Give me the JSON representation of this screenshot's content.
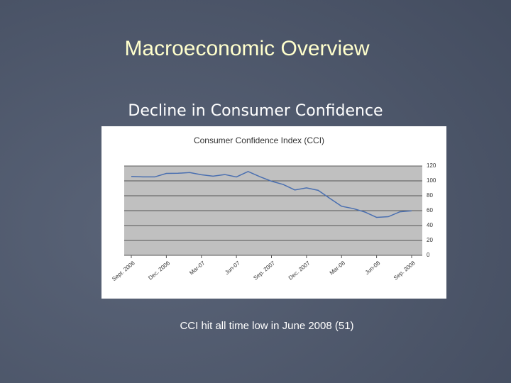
{
  "slide": {
    "title": "Macroeconomic Overview",
    "subtitle": "Decline in Consumer Confidence",
    "caption": "CCI hit all time low in June 2008 (51)"
  },
  "chart_data": {
    "type": "line",
    "title": "Consumer Confidence Index (CCI)",
    "categories": [
      "Sept. 2006",
      null,
      null,
      "Dec. 2006",
      null,
      null,
      "Mar-07",
      null,
      null,
      "Jun-07",
      null,
      null,
      "Sep. 2007",
      null,
      null,
      "Dec. 2007",
      null,
      null,
      "Mar-08",
      null,
      null,
      "Jun-08",
      null,
      null,
      "Sep. 2008"
    ],
    "series": [
      {
        "name": "CCI",
        "color": "#4a6fb0",
        "values": [
          105.9,
          105.4,
          105.3,
          110,
          110.2,
          111.2,
          108.2,
          106.3,
          108.5,
          105.3,
          112.6,
          105.6,
          99.5,
          95.2,
          87.8,
          90.6,
          87.3,
          76.4,
          65.9,
          62.8,
          58.1,
          51,
          51.9,
          58.5,
          59.8
        ]
      }
    ],
    "ylim": [
      0,
      120
    ],
    "yticks": [
      0,
      20,
      40,
      60,
      80,
      100,
      120
    ],
    "grid": true,
    "y_axis_side": "right"
  }
}
